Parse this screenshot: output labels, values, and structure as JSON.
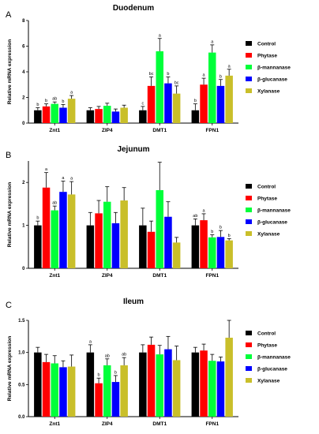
{
  "legend_colors": [
    "#000000",
    "#ff0000",
    "#00ff3a",
    "#0000ff",
    "#c9bf2a"
  ],
  "chart_data": [
    {
      "type": "bar",
      "panel": "A",
      "title": "Duodenum",
      "ylabel": "Relative mRNA expression",
      "ylim": [
        0,
        8
      ],
      "yticks": [
        0,
        2,
        4,
        6,
        8
      ],
      "categories": [
        "Znt1",
        "ZIP4",
        "DMT1",
        "FPN1"
      ],
      "series": [
        {
          "name": "Control",
          "values": [
            1.0,
            1.0,
            1.0,
            1.0
          ],
          "errors": [
            0.2,
            0.2,
            0.3,
            0.5
          ],
          "labels": [
            "b",
            "",
            "c",
            "b"
          ]
        },
        {
          "name": "Phytase",
          "values": [
            1.3,
            1.1,
            2.9,
            3.0
          ],
          "errors": [
            0.2,
            0.2,
            0.7,
            0.5
          ],
          "labels": [
            "b",
            "",
            "bc",
            "a"
          ]
        },
        {
          "name": "β-mannanase",
          "values": [
            1.5,
            1.35,
            5.6,
            5.5
          ],
          "errors": [
            0.15,
            0.2,
            1.0,
            0.6
          ],
          "labels": [
            "ab",
            "",
            "a",
            "a"
          ]
        },
        {
          "name": "β-glucanase",
          "values": [
            1.2,
            0.9,
            3.1,
            2.9
          ],
          "errors": [
            0.25,
            0.2,
            0.5,
            0.5
          ],
          "labels": [
            "b",
            "",
            "b",
            "b"
          ]
        },
        {
          "name": "Xylanase",
          "values": [
            1.9,
            1.2,
            2.3,
            3.7
          ],
          "errors": [
            0.25,
            0.2,
            0.6,
            0.5
          ],
          "labels": [
            "a",
            "",
            "bc",
            "a"
          ]
        }
      ]
    },
    {
      "type": "bar",
      "panel": "B",
      "title": "Jejunum",
      "ylabel": "Relative mRNA expression",
      "ylim": [
        0,
        2.5
      ],
      "yticks": [
        0,
        1,
        2
      ],
      "categories": [
        "Znt1",
        "ZIP4",
        "DMT1",
        "FPN1"
      ],
      "series": [
        {
          "name": "Control",
          "values": [
            1.0,
            1.0,
            1.0,
            1.0
          ],
          "errors": [
            0.1,
            0.3,
            0.4,
            0.15
          ],
          "labels": [
            "b",
            "",
            "",
            "ab"
          ]
        },
        {
          "name": "Phytase",
          "values": [
            1.88,
            1.28,
            0.85,
            1.12
          ],
          "errors": [
            0.35,
            0.3,
            0.25,
            0.15
          ],
          "labels": [
            "a",
            "",
            "",
            "a"
          ]
        },
        {
          "name": "β-mannanase",
          "values": [
            1.35,
            1.55,
            1.82,
            0.72
          ],
          "errors": [
            0.1,
            0.35,
            0.65,
            0.06
          ],
          "labels": [
            "ab",
            "",
            "",
            "b"
          ]
        },
        {
          "name": "β-glucanase",
          "values": [
            1.78,
            1.05,
            1.2,
            0.73
          ],
          "errors": [
            0.25,
            0.25,
            0.35,
            0.15
          ],
          "labels": [
            "a",
            "",
            "",
            "b"
          ]
        },
        {
          "name": "Xylanase",
          "values": [
            1.72,
            1.58,
            0.6,
            0.65
          ],
          "errors": [
            0.3,
            0.3,
            0.12,
            0.04
          ],
          "labels": [
            "a",
            "",
            "",
            "b"
          ]
        }
      ]
    },
    {
      "type": "bar",
      "panel": "C",
      "title": "Ileum",
      "ylabel": "Relative mRNA expression",
      "ylim": [
        0,
        1.5
      ],
      "yticks": [
        0.0,
        0.5,
        1.0,
        1.5
      ],
      "categories": [
        "Znt1",
        "ZIP4",
        "DMT1",
        "FPN1"
      ],
      "series": [
        {
          "name": "Control",
          "values": [
            1.0,
            1.0,
            1.0,
            1.0
          ],
          "errors": [
            0.08,
            0.12,
            0.12,
            0.08
          ],
          "labels": [
            "",
            "a",
            "",
            ""
          ]
        },
        {
          "name": "Phytase",
          "values": [
            0.85,
            0.52,
            1.12,
            1.03
          ],
          "errors": [
            0.12,
            0.08,
            0.12,
            0.1
          ],
          "labels": [
            "",
            "b",
            "",
            ""
          ]
        },
        {
          "name": "β-mannanase",
          "values": [
            0.83,
            0.8,
            0.97,
            0.87
          ],
          "errors": [
            0.12,
            0.1,
            0.14,
            0.1
          ],
          "labels": [
            "",
            "ab",
            "",
            ""
          ]
        },
        {
          "name": "β-glucanase",
          "values": [
            0.77,
            0.54,
            1.05,
            0.86
          ],
          "errors": [
            0.1,
            0.1,
            0.2,
            0.07
          ],
          "labels": [
            "",
            "b",
            "",
            ""
          ]
        },
        {
          "name": "Xylanase",
          "values": [
            0.78,
            0.8,
            0.88,
            1.23
          ],
          "errors": [
            0.18,
            0.12,
            0.22,
            0.27
          ],
          "labels": [
            "",
            "ab",
            "",
            ""
          ]
        }
      ]
    }
  ]
}
